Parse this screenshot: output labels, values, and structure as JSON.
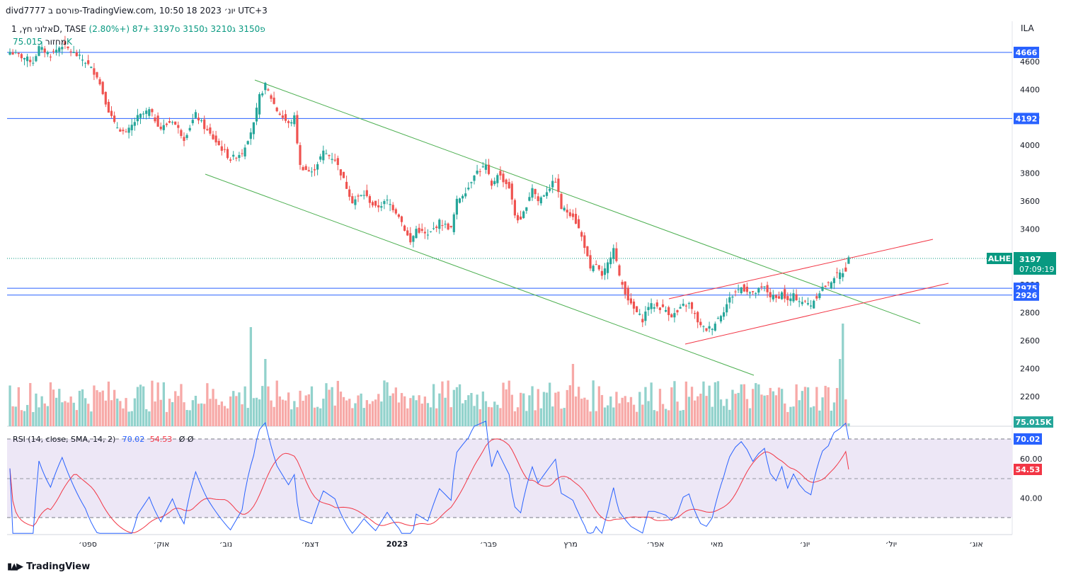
{
  "header": {
    "title": "divd7777 פורסם ב-TradingView.com, 10:50 18 יונ׳ 2023 UTC+3"
  },
  "symbol": {
    "name": "אלוני חץ, 1D, TASE",
    "open": "פ3150",
    "high": "ג3210",
    "low": "נ3150",
    "close": "ס3197",
    "change": "+87 (+2.80%)"
  },
  "volume": {
    "label": "מחזור",
    "value": "75.015K"
  },
  "currency": "ILA",
  "price_axis_ticks": [
    "4600",
    "4400",
    "4200",
    "4000",
    "3800",
    "3600",
    "3400",
    "3200",
    "3000",
    "2800",
    "2600",
    "2400",
    "2200"
  ],
  "rsi_axis_ticks": [
    "60.00",
    "40.00"
  ],
  "time_axis": [
    "ספט׳",
    "אוק׳",
    "נוב׳",
    "דצמ׳",
    "2023",
    "פבר׳",
    "מרץ",
    "אפר׳",
    "מאי",
    "יונ׳",
    "יול׳",
    "אוג׳"
  ],
  "price_labels": {
    "level_4666": "4666",
    "level_4192": "4192",
    "level_2975": "2975",
    "level_2926": "2926",
    "current_price": "3197",
    "countdown": "07:09:19",
    "ticker_tag": "ALHE",
    "volume_tag": "75.015K",
    "rsi_value": "70.02",
    "rsi_sma": "54.53"
  },
  "rsi": {
    "title": "RSI (14, close, SMA, 14, 2)",
    "value": "70.02",
    "sma": "54.53",
    "extra": "Ø Ø"
  },
  "footer": {
    "brand": "TradingView"
  },
  "colors": {
    "up": "#26a69a",
    "down": "#ef5350",
    "vol_up": "#92d2cc",
    "vol_down": "#f7a9a7",
    "hline": "#2962ff",
    "channel_green": "#4caf50",
    "channel_red": "#f23645",
    "rsi_line": "#2962ff",
    "rsi_sma": "#f23645",
    "rsi_band": "#ede7f6"
  },
  "chart_data": {
    "type": "candlestick",
    "symbol": "ALHE",
    "exchange": "TASE",
    "timeframe": "1D",
    "y_range": [
      2040,
      4740
    ],
    "horizontal_levels": [
      4666,
      4192,
      2975,
      2926
    ],
    "last_price": 3197,
    "session": {
      "open": 3150,
      "high": 3210,
      "low": 3150,
      "close": 3197,
      "change": 87,
      "change_pct": 2.8
    },
    "close_anchors": [
      [
        0,
        4670
      ],
      [
        8,
        4600
      ],
      [
        10,
        4700
      ],
      [
        14,
        4650
      ],
      [
        18,
        4720
      ],
      [
        22,
        4660
      ],
      [
        26,
        4600
      ],
      [
        30,
        4500
      ],
      [
        34,
        4250
      ],
      [
        36,
        4150
      ],
      [
        40,
        4080
      ],
      [
        44,
        4200
      ],
      [
        48,
        4250
      ],
      [
        52,
        4120
      ],
      [
        56,
        4180
      ],
      [
        60,
        4050
      ],
      [
        64,
        4220
      ],
      [
        68,
        4100
      ],
      [
        72,
        4000
      ],
      [
        76,
        3900
      ],
      [
        80,
        3950
      ],
      [
        84,
        4150
      ],
      [
        86,
        4350
      ],
      [
        88,
        4430
      ],
      [
        92,
        4250
      ],
      [
        96,
        4150
      ],
      [
        98,
        4200
      ],
      [
        100,
        3850
      ],
      [
        104,
        3800
      ],
      [
        108,
        3950
      ],
      [
        112,
        3900
      ],
      [
        114,
        3800
      ],
      [
        118,
        3600
      ],
      [
        122,
        3650
      ],
      [
        126,
        3550
      ],
      [
        130,
        3600
      ],
      [
        134,
        3500
      ],
      [
        136,
        3400
      ],
      [
        138,
        3300
      ],
      [
        140,
        3400
      ],
      [
        144,
        3350
      ],
      [
        148,
        3450
      ],
      [
        152,
        3400
      ],
      [
        154,
        3600
      ],
      [
        158,
        3700
      ],
      [
        160,
        3800
      ],
      [
        164,
        3850
      ],
      [
        166,
        3700
      ],
      [
        168,
        3800
      ],
      [
        172,
        3700
      ],
      [
        174,
        3500
      ],
      [
        176,
        3450
      ],
      [
        180,
        3700
      ],
      [
        182,
        3600
      ],
      [
        186,
        3700
      ],
      [
        188,
        3750
      ],
      [
        190,
        3550
      ],
      [
        194,
        3500
      ],
      [
        196,
        3400
      ],
      [
        198,
        3280
      ],
      [
        200,
        3100
      ],
      [
        202,
        3150
      ],
      [
        204,
        3050
      ],
      [
        206,
        3150
      ],
      [
        208,
        3280
      ],
      [
        210,
        3050
      ],
      [
        212,
        2950
      ],
      [
        214,
        2850
      ],
      [
        216,
        2800
      ],
      [
        218,
        2750
      ],
      [
        220,
        2850
      ],
      [
        222,
        2850
      ],
      [
        226,
        2820
      ],
      [
        228,
        2780
      ],
      [
        230,
        2800
      ],
      [
        232,
        2850
      ],
      [
        234,
        2860
      ],
      [
        236,
        2780
      ],
      [
        238,
        2700
      ],
      [
        240,
        2680
      ],
      [
        242,
        2700
      ],
      [
        244,
        2760
      ],
      [
        246,
        2820
      ],
      [
        248,
        2900
      ],
      [
        250,
        2950
      ],
      [
        252,
        2980
      ],
      [
        254,
        2960
      ],
      [
        256,
        2930
      ],
      [
        258,
        2960
      ],
      [
        260,
        2980
      ],
      [
        262,
        2920
      ],
      [
        264,
        2900
      ],
      [
        266,
        2940
      ],
      [
        268,
        2880
      ],
      [
        270,
        2920
      ],
      [
        272,
        2890
      ],
      [
        274,
        2870
      ],
      [
        276,
        2860
      ],
      [
        278,
        2920
      ],
      [
        280,
        2980
      ],
      [
        282,
        3000
      ],
      [
        284,
        3060
      ],
      [
        286,
        3080
      ],
      [
        288,
        3110
      ],
      [
        289,
        3197
      ]
    ],
    "volume_note": "last bar 75.015K",
    "rsi": {
      "length": 14,
      "source": "close",
      "ma": "SMA",
      "ma_length": 14,
      "last": 70.02,
      "sma_last": 54.53,
      "levels": [
        70,
        50,
        30
      ]
    },
    "x_axis_labels": [
      "ספט׳",
      "אוק׳",
      "נוב׳",
      "דצמ׳",
      "2023",
      "פבר׳",
      "מרץ",
      "אפר׳",
      "מאי",
      "יונ׳",
      "יול׳",
      "אוג׳"
    ]
  }
}
